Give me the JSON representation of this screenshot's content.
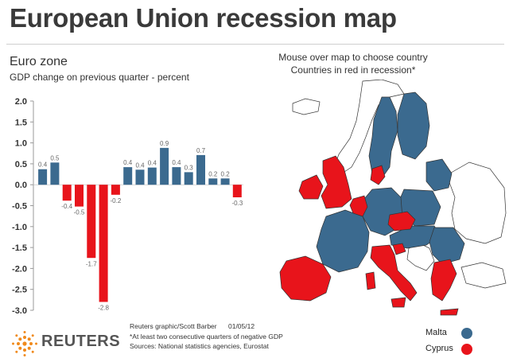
{
  "page": {
    "title": "European Union recession map",
    "map_instruction_1": "Mouse over map to choose country",
    "map_instruction_2": "Countries in red in recession*",
    "credit": "Reuters graphic/Scott Barber",
    "date": "01/05/12",
    "footnote": "*At least two consecutive quarters of negative GDP",
    "sources": "Sources: National statistics agencies, Eurostat",
    "logo_text": "REUTERS"
  },
  "legend": [
    {
      "label": "Malta",
      "color": "#3b6a8f"
    },
    {
      "label": "Cyprus",
      "color": "#e8141b"
    }
  ],
  "map": {
    "in_recession_color": "#e8141b",
    "not_in_recession_color": "#3b6a8f",
    "non_eu_color": "#ffffff",
    "border_color": "#333333"
  },
  "chart_data": {
    "type": "bar",
    "title": "Euro zone",
    "subtitle": "GDP change on previous quarter - percent",
    "values": [
      0.4,
      0.5,
      -0.4,
      -0.5,
      -1.7,
      -2.8,
      -0.2,
      0.4,
      0.4,
      0.4,
      0.9,
      0.4,
      0.3,
      0.7,
      0.2,
      0.2,
      -0.3
    ],
    "value_labels": [
      "0.4",
      "0.5",
      "-0.4",
      "-0.5",
      "-1.7",
      "-2.8",
      "-0.2",
      "0.4",
      "0.4",
      "0.4",
      "0.9",
      "0.4",
      "0.3",
      "0.7",
      "0.2",
      "0.2",
      "-0.3"
    ],
    "actual_values": [
      0.37,
      0.53,
      -0.38,
      -0.52,
      -1.75,
      -2.8,
      -0.24,
      0.42,
      0.36,
      0.41,
      0.88,
      0.42,
      0.3,
      0.71,
      0.15,
      0.15,
      -0.3
    ],
    "ylim": [
      -3.0,
      2.0
    ],
    "yticks": [
      2.0,
      1.5,
      1.0,
      0.5,
      0.0,
      -0.5,
      -1.0,
      -1.5,
      -2.0,
      -2.5,
      -3.0
    ],
    "ytick_labels": [
      "2.0",
      "1.5",
      "1.0",
      "0.5",
      "0.0",
      "-0.5",
      "-1.0",
      "-1.5",
      "-2.0",
      "-2.5",
      "-3.0"
    ],
    "positive_color": "#3b6a8f",
    "negative_color": "#e8141b",
    "grid": false,
    "legend": "none"
  }
}
